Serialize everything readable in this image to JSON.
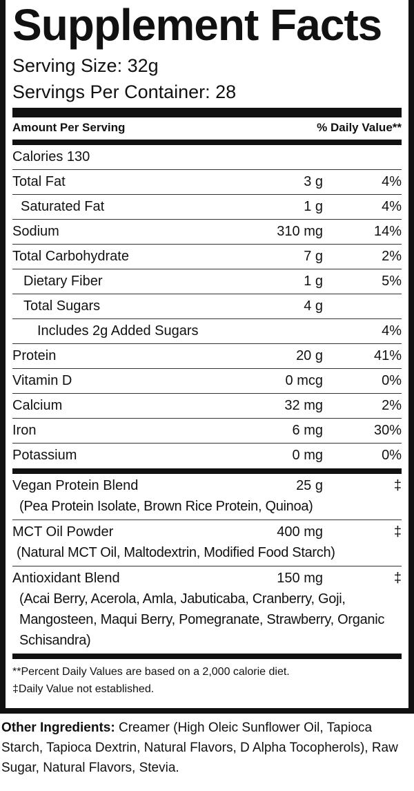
{
  "title": "Supplement Facts",
  "serving_size": "Serving Size: 32g",
  "servings_per_container": "Servings Per Container: 28",
  "header": {
    "amount": "Amount Per Serving",
    "dv": "% Daily Value**"
  },
  "calories": "Calories  130",
  "rows": [
    {
      "name": "Total Fat",
      "amount": "3 g",
      "dv": "4%"
    },
    {
      "name": "Saturated Fat",
      "amount": "1 g",
      "dv": "4%"
    },
    {
      "name": "Sodium",
      "amount": "310 mg",
      "dv": "14%"
    },
    {
      "name": "Total Carbohydrate",
      "amount": "7 g",
      "dv": "2%"
    },
    {
      "name": "Dietary Fiber",
      "amount": "1 g",
      "dv": "5%"
    },
    {
      "name": "Total Sugars",
      "amount": "4 g",
      "dv": ""
    },
    {
      "name": "Includes 2g Added Sugars",
      "amount": "",
      "dv": "4%"
    },
    {
      "name": "Protein",
      "amount": "20 g",
      "dv": "41%"
    },
    {
      "name": "Vitamin D",
      "amount": "0 mcg",
      "dv": "0%"
    },
    {
      "name": "Calcium",
      "amount": "32 mg",
      "dv": "2%"
    },
    {
      "name": "Iron",
      "amount": "6 mg",
      "dv": "30%"
    },
    {
      "name": "Potassium",
      "amount": "0 mg",
      "dv": "0%"
    }
  ],
  "blends": [
    {
      "name": "Vegan Protein Blend",
      "amount": "25 g",
      "dv": "‡",
      "sub": "(Pea Protein Isolate, Brown Rice Protein, Quinoa)"
    },
    {
      "name": "MCT Oil Powder",
      "amount": "400 mg",
      "dv": "‡",
      "sub": "(Natural MCT Oil, Maltodextrin, Modified Food Starch)"
    },
    {
      "name": "Antioxidant Blend",
      "amount": "150 mg",
      "dv": "‡",
      "sub": "(Acai Berry, Acerola, Amla, Jabuticaba, Cranberry, Goji, Mangosteen, Maqui Berry, Pomegranate, Strawberry, Organic Schisandra)"
    }
  ],
  "footnotes": [
    "**Percent Daily Values are based on a 2,000 calorie diet.",
    "‡Daily Value not established."
  ],
  "other_ingredients": {
    "label": "Other Ingredients:",
    "text": " Creamer (High Oleic Sunflower Oil, Tapioca Starch, Tapioca Dextrin, Natural Flavors, D Alpha Tocopherols), Raw Sugar, Natural Flavors, Stevia."
  }
}
